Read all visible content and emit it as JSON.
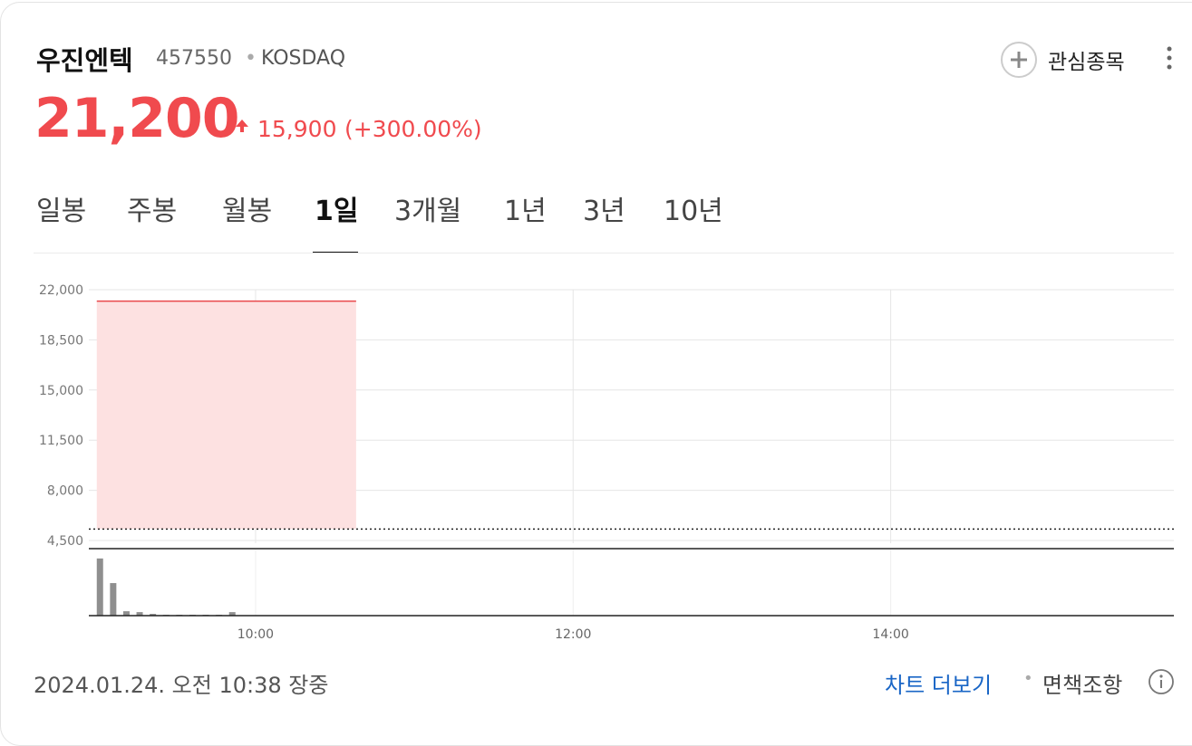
{
  "header": {
    "name": "우진엔텍",
    "code": "457550",
    "market": "KOSDAQ",
    "watch": "관심종목"
  },
  "quote": {
    "price": "21,200",
    "change": "15,900",
    "change_pct": "(+300.00%)"
  },
  "tabs": {
    "items": [
      "일봉",
      "주봉",
      "월봉",
      "1일",
      "3개월",
      "1년",
      "3년",
      "10년"
    ],
    "active": 3
  },
  "chart_data": [
    {
      "type": "area",
      "color": "#e8484b",
      "fill": "#fde1e1",
      "x": [
        540,
        638
      ],
      "series": [
        {
          "values": [
            21200,
            21200
          ]
        }
      ],
      "baseline": 5300,
      "xlim": [
        537,
        947
      ],
      "xticks": [
        {
          "value": 600,
          "label": "10:00"
        },
        {
          "value": 720,
          "label": "12:00"
        },
        {
          "value": 840,
          "label": "14:00"
        }
      ],
      "ylim": [
        4500,
        22000
      ],
      "yticks": [
        {
          "value": 22000,
          "label": "22,000"
        },
        {
          "value": 18500,
          "label": "18,500"
        },
        {
          "value": 15000,
          "label": "15,000"
        },
        {
          "value": 11500,
          "label": "11,500"
        },
        {
          "value": 8000,
          "label": "8,000"
        },
        {
          "value": 4500,
          "label": "4,500"
        }
      ],
      "grid": true
    },
    {
      "type": "bar",
      "color": "#8f8f8f",
      "x": [
        540,
        545,
        550,
        555,
        560,
        565,
        570,
        575,
        580,
        585,
        590
      ],
      "values": [
        65,
        37,
        5,
        4,
        2,
        1,
        1,
        1,
        1,
        1,
        4
      ],
      "xlim": [
        537,
        947
      ],
      "ylim": [
        0,
        70
      ]
    }
  ],
  "footer": {
    "timestamp": "2024.01.24. 오전 10:38 장중",
    "more": "차트 더보기",
    "disclaimer": "면책조항"
  }
}
